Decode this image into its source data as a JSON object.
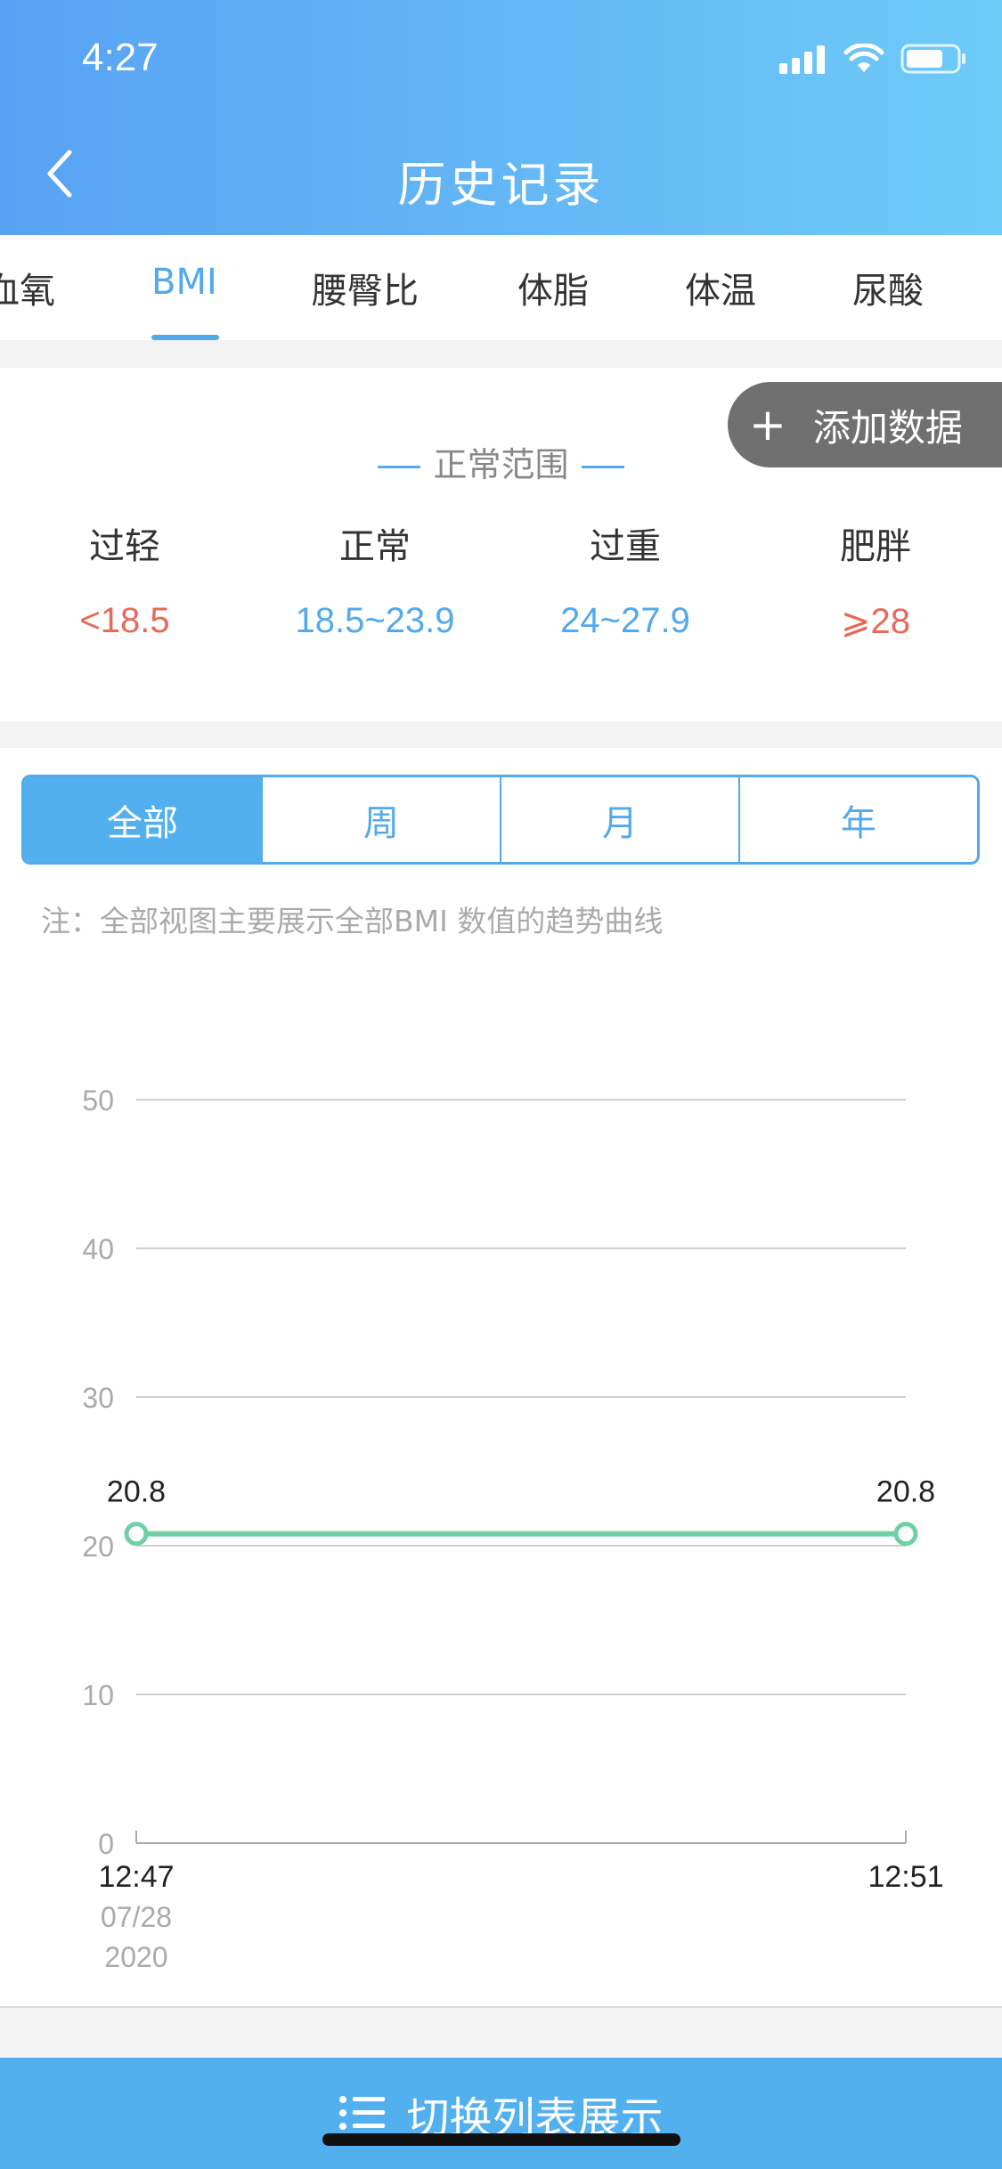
{
  "status_bar": {
    "time": "4:27"
  },
  "nav": {
    "title": "历史记录",
    "back_icon": "chevron-left-icon"
  },
  "tabs": [
    {
      "label": "血氧",
      "active": false
    },
    {
      "label": "BMI",
      "active": true
    },
    {
      "label": "腰臀比",
      "active": false
    },
    {
      "label": "体脂",
      "active": false
    },
    {
      "label": "体温",
      "active": false
    },
    {
      "label": "尿酸",
      "active": false
    }
  ],
  "add_data": {
    "icon": "plus-icon",
    "label": "添加数据"
  },
  "normal_range": {
    "title": "正常范围",
    "categories": [
      {
        "label": "过轻",
        "value": "<18.5",
        "color": "#e8695a"
      },
      {
        "label": "正常",
        "value": "18.5~23.9",
        "color": "#52a9ec"
      },
      {
        "label": "过重",
        "value": "24~27.9",
        "color": "#52a9ec"
      },
      {
        "label": "肥胖",
        "value": "⩾28",
        "color": "#e8695a"
      }
    ]
  },
  "period_filter": {
    "options": [
      "全部",
      "周",
      "月",
      "年"
    ],
    "selected": "全部"
  },
  "note": "注：全部视图主要展示全部BMI 数值的趋势曲线",
  "chart_data": {
    "type": "line",
    "yticks": [
      0,
      10,
      20,
      30,
      40,
      50
    ],
    "ylim": [
      0,
      50
    ],
    "x": [
      "12:47",
      "12:51"
    ],
    "x_date": "07/28",
    "x_year": "2020",
    "series": [
      {
        "values": [
          20.8,
          20.8
        ],
        "color": "#6fd0a5"
      }
    ],
    "data_labels": [
      "20.8",
      "20.8"
    ],
    "grid": true
  },
  "bottom_action": {
    "icon": "list-icon",
    "label": "切换列表展示"
  }
}
